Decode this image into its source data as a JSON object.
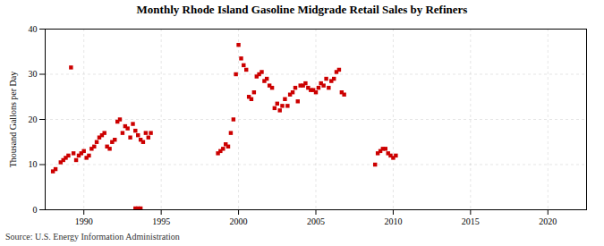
{
  "chart_data": {
    "type": "scatter",
    "title": "Monthly Rhode Island Gasoline Midgrade Retail Sales by Refiners",
    "ylabel": "Thousand Gallons per Day",
    "source": "Source: U.S. Energy Information Administration",
    "color": "#CC0000",
    "marker": "square",
    "xlim": [
      1987.5,
      2022.5
    ],
    "ylim": [
      0,
      40
    ],
    "xticks": [
      1990,
      1995,
      2000,
      2005,
      2010,
      2015,
      2020
    ],
    "yticks": [
      0,
      10,
      20,
      30,
      40
    ],
    "grid": true,
    "x": [
      1988.0,
      1988.17,
      1988.5,
      1988.67,
      1988.83,
      1989.0,
      1989.17,
      1989.33,
      1989.5,
      1989.67,
      1989.83,
      1990.0,
      1990.17,
      1990.33,
      1990.5,
      1990.67,
      1990.83,
      1991.0,
      1991.17,
      1991.33,
      1991.5,
      1991.67,
      1991.83,
      1992.0,
      1992.17,
      1992.33,
      1992.5,
      1992.67,
      1992.83,
      1993.0,
      1993.17,
      1993.33,
      1993.5,
      1993.67,
      1993.83,
      1994.0,
      1994.17,
      1994.33,
      1993.33,
      1993.5,
      1993.67,
      1998.67,
      1998.83,
      1999.0,
      1999.17,
      1999.33,
      1999.5,
      1999.67,
      1999.83,
      2000.0,
      2000.17,
      2000.33,
      2000.5,
      2000.67,
      2000.83,
      2001.0,
      2001.17,
      2001.33,
      2001.5,
      2001.67,
      2001.83,
      2002.0,
      2002.17,
      2002.33,
      2002.5,
      2002.67,
      2002.83,
      2003.0,
      2003.17,
      2003.33,
      2003.5,
      2003.67,
      2003.83,
      2004.0,
      2004.17,
      2004.33,
      2004.5,
      2004.67,
      2004.83,
      2005.0,
      2005.17,
      2005.33,
      2005.5,
      2005.67,
      2005.83,
      2006.0,
      2006.17,
      2006.33,
      2006.5,
      2006.67,
      2006.83,
      2008.83,
      2009.0,
      2009.17,
      2009.33,
      2009.5,
      2009.67,
      2009.83,
      2010.0,
      2010.17
    ],
    "values": [
      8.5,
      9.0,
      10.5,
      11.0,
      11.5,
      12.0,
      31.5,
      12.5,
      11.0,
      12.0,
      12.5,
      13.0,
      11.5,
      12.0,
      13.5,
      14.0,
      15.0,
      16.0,
      16.5,
      17.0,
      14.0,
      13.5,
      15.0,
      15.5,
      19.5,
      20.0,
      17.0,
      18.5,
      18.0,
      16.0,
      19.0,
      17.5,
      16.5,
      15.5,
      15.0,
      17.0,
      16.0,
      17.0,
      0.3,
      0.3,
      0.3,
      12.5,
      13.0,
      13.5,
      14.5,
      14.0,
      17.0,
      20.0,
      30.0,
      36.5,
      33.5,
      32.0,
      31.0,
      25.0,
      24.5,
      26.0,
      29.5,
      30.0,
      30.5,
      28.5,
      29.0,
      27.5,
      27.0,
      22.5,
      23.5,
      22.0,
      23.0,
      24.5,
      23.0,
      25.5,
      26.0,
      27.0,
      24.0,
      27.5,
      27.5,
      28.0,
      27.0,
      26.5,
      26.5,
      26.0,
      27.0,
      28.0,
      27.5,
      29.0,
      27.0,
      28.5,
      29.0,
      30.5,
      31.0,
      26.0,
      25.5,
      10.0,
      12.5,
      13.0,
      13.5,
      13.5,
      12.5,
      12.0,
      11.5,
      12.0
    ]
  }
}
